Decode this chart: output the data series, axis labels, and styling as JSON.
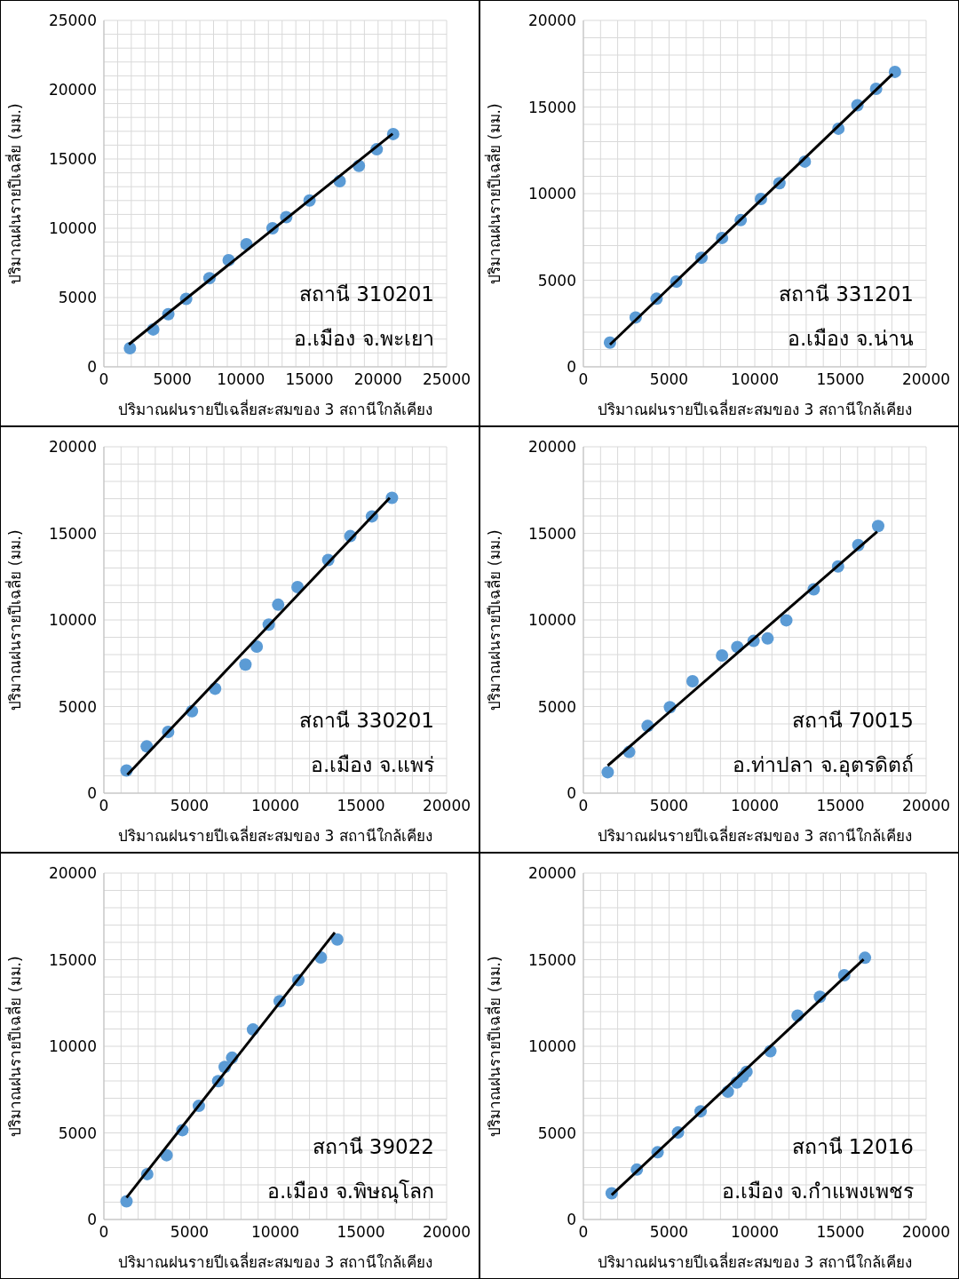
{
  "chart_data": [
    {
      "type": "scatter",
      "xlabel": "ปริมาณฝนรายปีเฉลี่ยสะสมของ 3 สถานีใกล้เคียง",
      "ylabel": "ปริมาณฝนรายปีเฉลี่ย (มม.)",
      "annotations": [
        "สถานี 310201",
        "อ.เมือง จ.พะเยา"
      ],
      "grid": true,
      "marker": "circle",
      "xlim": [
        0,
        25000
      ],
      "ylim": [
        0,
        25000
      ],
      "xticks": [
        0,
        {
          "value": 1000,
          "label": null
        },
        {
          "value": 2000,
          "label": null
        },
        {
          "value": 3000,
          "label": null
        },
        {
          "value": 4000,
          "label": null
        },
        5000,
        {
          "value": 6000,
          "label": null
        },
        {
          "value": 7000,
          "label": null
        },
        {
          "value": 8000,
          "label": null
        },
        {
          "value": 9000,
          "label": null
        },
        10000,
        {
          "value": 11000,
          "label": null
        },
        {
          "value": 12000,
          "label": null
        },
        {
          "value": 13000,
          "label": null
        },
        {
          "value": 14000,
          "label": null
        },
        15000,
        {
          "value": 16000,
          "label": null
        },
        {
          "value": 17000,
          "label": null
        },
        {
          "value": 18000,
          "label": null
        },
        {
          "value": 19000,
          "label": null
        },
        20000,
        {
          "value": 21000,
          "label": null
        },
        {
          "value": 22000,
          "label": null
        },
        {
          "value": 23000,
          "label": null
        },
        {
          "value": 24000,
          "label": null
        },
        25000
      ],
      "yticks": [
        0,
        {
          "value": 1000,
          "label": null
        },
        {
          "value": 2000,
          "label": null
        },
        {
          "value": 3000,
          "label": null
        },
        {
          "value": 4000,
          "label": null
        },
        5000,
        {
          "value": 6000,
          "label": null
        },
        {
          "value": 7000,
          "label": null
        },
        {
          "value": 8000,
          "label": null
        },
        {
          "value": 9000,
          "label": null
        },
        10000,
        {
          "value": 11000,
          "label": null
        },
        {
          "value": 12000,
          "label": null
        },
        {
          "value": 13000,
          "label": null
        },
        {
          "value": 14000,
          "label": null
        },
        15000,
        {
          "value": 16000,
          "label": null
        },
        {
          "value": 17000,
          "label": null
        },
        {
          "value": 18000,
          "label": null
        },
        {
          "value": 19000,
          "label": null
        },
        20000,
        {
          "value": 21000,
          "label": null
        },
        {
          "value": 22000,
          "label": null
        },
        {
          "value": 23000,
          "label": null
        },
        {
          "value": 24000,
          "label": null
        },
        25000
      ],
      "series": [
        {
          "color": "#5b9bd5",
          "x": [
            1900,
            3600,
            4700,
            6000,
            7700,
            9100,
            10400,
            12300,
            13300,
            15000,
            17200,
            18600,
            19900,
            21100
          ],
          "values": [
            1350,
            2700,
            3800,
            4900,
            6400,
            7700,
            8850,
            10000,
            10800,
            12000,
            13400,
            14500,
            15700,
            16800
          ]
        },
        {
          "type": "line",
          "marker": "none",
          "color": "#000000",
          "x": [
            1820,
            21060
          ],
          "values": [
            1620,
            16820
          ]
        }
      ]
    },
    {
      "type": "scatter",
      "xlabel": "ปริมาณฝนรายปีเฉลี่ยสะสมของ 3 สถานีใกล้เคียง",
      "ylabel": "ปริมาณฝนรายปีเฉลี่ย (มม.)",
      "annotations": [
        "สถานี 331201",
        "อ.เมือง จ.น่าน"
      ],
      "grid": true,
      "marker": "circle",
      "xlim": [
        0,
        20000
      ],
      "ylim": [
        0,
        20000
      ],
      "xticks": [
        0,
        {
          "value": 1000,
          "label": null
        },
        {
          "value": 2000,
          "label": null
        },
        {
          "value": 3000,
          "label": null
        },
        {
          "value": 4000,
          "label": null
        },
        5000,
        {
          "value": 6000,
          "label": null
        },
        {
          "value": 7000,
          "label": null
        },
        {
          "value": 8000,
          "label": null
        },
        {
          "value": 9000,
          "label": null
        },
        10000,
        {
          "value": 11000,
          "label": null
        },
        {
          "value": 12000,
          "label": null
        },
        {
          "value": 13000,
          "label": null
        },
        {
          "value": 14000,
          "label": null
        },
        15000,
        {
          "value": 16000,
          "label": null
        },
        {
          "value": 17000,
          "label": null
        },
        {
          "value": 18000,
          "label": null
        },
        {
          "value": 19000,
          "label": null
        },
        20000
      ],
      "yticks": [
        0,
        {
          "value": 1000,
          "label": null
        },
        {
          "value": 2000,
          "label": null
        },
        {
          "value": 3000,
          "label": null
        },
        {
          "value": 4000,
          "label": null
        },
        5000,
        {
          "value": 6000,
          "label": null
        },
        {
          "value": 7000,
          "label": null
        },
        {
          "value": 8000,
          "label": null
        },
        {
          "value": 9000,
          "label": null
        },
        10000,
        {
          "value": 11000,
          "label": null
        },
        {
          "value": 12000,
          "label": null
        },
        {
          "value": 13000,
          "label": null
        },
        {
          "value": 14000,
          "label": null
        },
        15000,
        {
          "value": 16000,
          "label": null
        },
        {
          "value": 17000,
          "label": null
        },
        {
          "value": 18000,
          "label": null
        },
        {
          "value": 19000,
          "label": null
        },
        20000
      ],
      "series": [
        {
          "color": "#5b9bd5",
          "x": [
            1550,
            3050,
            4270,
            5420,
            6890,
            8090,
            9180,
            10360,
            11440,
            12920,
            14880,
            15990,
            17080,
            18180
          ],
          "values": [
            1400,
            2850,
            3930,
            4920,
            6300,
            7440,
            8470,
            9690,
            10600,
            11850,
            13750,
            15100,
            16050,
            17030
          ]
        },
        {
          "type": "line",
          "marker": "none",
          "color": "#000000",
          "x": [
            1550,
            18040
          ],
          "values": [
            1280,
            16900
          ]
        }
      ]
    },
    {
      "type": "scatter",
      "xlabel": "ปริมาณฝนรายปีเฉลี่ยสะสมของ 3 สถานีใกล้เคียง",
      "ylabel": "ปริมาณฝนรายปีเฉลี่ย (มม.)",
      "annotations": [
        "สถานี 330201",
        "อ.เมือง จ.แพร่"
      ],
      "grid": true,
      "marker": "circle",
      "xlim": [
        0,
        20000
      ],
      "ylim": [
        0,
        20000
      ],
      "xticks": [
        0,
        {
          "value": 1000,
          "label": null
        },
        {
          "value": 2000,
          "label": null
        },
        {
          "value": 3000,
          "label": null
        },
        {
          "value": 4000,
          "label": null
        },
        5000,
        {
          "value": 6000,
          "label": null
        },
        {
          "value": 7000,
          "label": null
        },
        {
          "value": 8000,
          "label": null
        },
        {
          "value": 9000,
          "label": null
        },
        10000,
        {
          "value": 11000,
          "label": null
        },
        {
          "value": 12000,
          "label": null
        },
        {
          "value": 13000,
          "label": null
        },
        {
          "value": 14000,
          "label": null
        },
        15000,
        {
          "value": 16000,
          "label": null
        },
        {
          "value": 17000,
          "label": null
        },
        {
          "value": 18000,
          "label": null
        },
        {
          "value": 19000,
          "label": null
        },
        20000
      ],
      "yticks": [
        0,
        {
          "value": 1000,
          "label": null
        },
        {
          "value": 2000,
          "label": null
        },
        {
          "value": 3000,
          "label": null
        },
        {
          "value": 4000,
          "label": null
        },
        5000,
        {
          "value": 6000,
          "label": null
        },
        {
          "value": 7000,
          "label": null
        },
        {
          "value": 8000,
          "label": null
        },
        {
          "value": 9000,
          "label": null
        },
        10000,
        {
          "value": 11000,
          "label": null
        },
        {
          "value": 12000,
          "label": null
        },
        {
          "value": 13000,
          "label": null
        },
        {
          "value": 14000,
          "label": null
        },
        15000,
        {
          "value": 16000,
          "label": null
        },
        {
          "value": 17000,
          "label": null
        },
        {
          "value": 18000,
          "label": null
        },
        {
          "value": 19000,
          "label": null
        },
        20000
      ],
      "series": [
        {
          "color": "#5b9bd5",
          "x": [
            1320,
            2500,
            3750,
            5140,
            6490,
            8260,
            8920,
            9620,
            10170,
            11300,
            13090,
            14380,
            15640,
            16810
          ],
          "values": [
            1310,
            2700,
            3540,
            4730,
            6030,
            7420,
            8460,
            9730,
            10880,
            11900,
            13460,
            14840,
            15980,
            17050
          ]
        },
        {
          "type": "line",
          "marker": "none",
          "color": "#000000",
          "x": [
            1370,
            16680
          ],
          "values": [
            1060,
            17050
          ]
        }
      ]
    },
    {
      "type": "scatter",
      "xlabel": "ปริมาณฝนรายปีเฉลี่ยสะสมของ 3 สถานีใกล้เคียง",
      "ylabel": "ปริมาณฝนรายปีเฉลี่ย (มม.)",
      "annotations": [
        "สถานี 70015",
        "อ.ท่าปลา จ.อุตรดิตถ์"
      ],
      "grid": true,
      "marker": "circle",
      "xlim": [
        0,
        20000
      ],
      "ylim": [
        0,
        20000
      ],
      "xticks": [
        0,
        {
          "value": 1000,
          "label": null
        },
        {
          "value": 2000,
          "label": null
        },
        {
          "value": 3000,
          "label": null
        },
        {
          "value": 4000,
          "label": null
        },
        5000,
        {
          "value": 6000,
          "label": null
        },
        {
          "value": 7000,
          "label": null
        },
        {
          "value": 8000,
          "label": null
        },
        {
          "value": 9000,
          "label": null
        },
        10000,
        {
          "value": 11000,
          "label": null
        },
        {
          "value": 12000,
          "label": null
        },
        {
          "value": 13000,
          "label": null
        },
        {
          "value": 14000,
          "label": null
        },
        15000,
        {
          "value": 16000,
          "label": null
        },
        {
          "value": 17000,
          "label": null
        },
        {
          "value": 18000,
          "label": null
        },
        {
          "value": 19000,
          "label": null
        },
        20000
      ],
      "yticks": [
        0,
        {
          "value": 1000,
          "label": null
        },
        {
          "value": 2000,
          "label": null
        },
        {
          "value": 3000,
          "label": null
        },
        {
          "value": 4000,
          "label": null
        },
        5000,
        {
          "value": 6000,
          "label": null
        },
        {
          "value": 7000,
          "label": null
        },
        {
          "value": 8000,
          "label": null
        },
        {
          "value": 9000,
          "label": null
        },
        10000,
        {
          "value": 11000,
          "label": null
        },
        {
          "value": 12000,
          "label": null
        },
        {
          "value": 13000,
          "label": null
        },
        {
          "value": 14000,
          "label": null
        },
        15000,
        {
          "value": 16000,
          "label": null
        },
        {
          "value": 17000,
          "label": null
        },
        {
          "value": 18000,
          "label": null
        },
        {
          "value": 19000,
          "label": null
        },
        20000
      ],
      "series": [
        {
          "color": "#5b9bd5",
          "x": [
            1420,
            2670,
            3750,
            5050,
            6370,
            8090,
            8980,
            9930,
            10750,
            11840,
            13440,
            14860,
            16040,
            17200
          ],
          "values": [
            1210,
            2380,
            3880,
            4960,
            6460,
            7950,
            8440,
            8790,
            8930,
            9980,
            11770,
            13090,
            14320,
            15420
          ]
        },
        {
          "type": "line",
          "marker": "none",
          "color": "#000000",
          "x": [
            1420,
            17140
          ],
          "values": [
            1590,
            15100
          ]
        }
      ]
    },
    {
      "type": "scatter",
      "xlabel": "ปริมาณฝนรายปีเฉลี่ยสะสมของ 3 สถานีใกล้เคียง",
      "ylabel": "ปริมาณฝนรายปีเฉลี่ย (มม.)",
      "annotations": [
        "สถานี 39022",
        "อ.เมือง จ.พิษณุโลก"
      ],
      "grid": true,
      "marker": "circle",
      "xlim": [
        0,
        20000
      ],
      "ylim": [
        0,
        20000
      ],
      "xticks": [
        0,
        {
          "value": 1000,
          "label": null
        },
        {
          "value": 2000,
          "label": null
        },
        {
          "value": 3000,
          "label": null
        },
        {
          "value": 4000,
          "label": null
        },
        5000,
        {
          "value": 6000,
          "label": null
        },
        {
          "value": 7000,
          "label": null
        },
        {
          "value": 8000,
          "label": null
        },
        {
          "value": 9000,
          "label": null
        },
        10000,
        {
          "value": 11000,
          "label": null
        },
        {
          "value": 12000,
          "label": null
        },
        {
          "value": 13000,
          "label": null
        },
        {
          "value": 14000,
          "label": null
        },
        15000,
        {
          "value": 16000,
          "label": null
        },
        {
          "value": 17000,
          "label": null
        },
        {
          "value": 18000,
          "label": null
        },
        {
          "value": 19000,
          "label": null
        },
        20000
      ],
      "yticks": [
        0,
        {
          "value": 1000,
          "label": null
        },
        {
          "value": 2000,
          "label": null
        },
        {
          "value": 3000,
          "label": null
        },
        {
          "value": 4000,
          "label": null
        },
        5000,
        {
          "value": 6000,
          "label": null
        },
        {
          "value": 7000,
          "label": null
        },
        {
          "value": 8000,
          "label": null
        },
        {
          "value": 9000,
          "label": null
        },
        10000,
        {
          "value": 11000,
          "label": null
        },
        {
          "value": 12000,
          "label": null
        },
        {
          "value": 13000,
          "label": null
        },
        {
          "value": 14000,
          "label": null
        },
        15000,
        {
          "value": 16000,
          "label": null
        },
        {
          "value": 17000,
          "label": null
        },
        {
          "value": 18000,
          "label": null
        },
        {
          "value": 19000,
          "label": null
        },
        20000
      ],
      "series": [
        {
          "color": "#5b9bd5",
          "x": [
            1320,
            2530,
            3660,
            4580,
            5540,
            6670,
            7050,
            7480,
            8700,
            10260,
            11350,
            12660,
            13620
          ],
          "values": [
            1050,
            2620,
            3710,
            5160,
            6560,
            7990,
            8810,
            9340,
            10970,
            12600,
            13820,
            15130,
            16170
          ]
        },
        {
          "type": "line",
          "marker": "none",
          "color": "#000000",
          "x": [
            1320,
            13470
          ],
          "values": [
            1260,
            16570
          ]
        }
      ]
    },
    {
      "type": "scatter",
      "xlabel": "ปริมาณฝนรายปีเฉลี่ยสะสมของ 3 สถานีใกล้เคียง",
      "ylabel": "ปริมาณฝนรายปีเฉลี่ย (มม.)",
      "annotations": [
        "สถานี 12016",
        "อ.เมือง จ.กำแพงเพชร"
      ],
      "grid": true,
      "marker": "circle",
      "xlim": [
        0,
        20000
      ],
      "ylim": [
        0,
        20000
      ],
      "xticks": [
        0,
        {
          "value": 1000,
          "label": null
        },
        {
          "value": 2000,
          "label": null
        },
        {
          "value": 3000,
          "label": null
        },
        {
          "value": 4000,
          "label": null
        },
        5000,
        {
          "value": 6000,
          "label": null
        },
        {
          "value": 7000,
          "label": null
        },
        {
          "value": 8000,
          "label": null
        },
        {
          "value": 9000,
          "label": null
        },
        10000,
        {
          "value": 11000,
          "label": null
        },
        {
          "value": 12000,
          "label": null
        },
        {
          "value": 13000,
          "label": null
        },
        {
          "value": 14000,
          "label": null
        },
        15000,
        {
          "value": 16000,
          "label": null
        },
        {
          "value": 17000,
          "label": null
        },
        {
          "value": 18000,
          "label": null
        },
        {
          "value": 19000,
          "label": null
        },
        20000
      ],
      "yticks": [
        0,
        {
          "value": 1000,
          "label": null
        },
        {
          "value": 2000,
          "label": null
        },
        {
          "value": 3000,
          "label": null
        },
        {
          "value": 4000,
          "label": null
        },
        5000,
        {
          "value": 6000,
          "label": null
        },
        {
          "value": 7000,
          "label": null
        },
        {
          "value": 8000,
          "label": null
        },
        {
          "value": 9000,
          "label": null
        },
        10000,
        {
          "value": 11000,
          "label": null
        },
        {
          "value": 12000,
          "label": null
        },
        {
          "value": 13000,
          "label": null
        },
        {
          "value": 14000,
          "label": null
        },
        15000,
        {
          "value": 16000,
          "label": null
        },
        {
          "value": 17000,
          "label": null
        },
        {
          "value": 18000,
          "label": null
        },
        {
          "value": 19000,
          "label": null
        },
        20000
      ],
      "series": [
        {
          "color": "#5b9bd5",
          "x": [
            1650,
            3120,
            4330,
            5520,
            6840,
            8430,
            8950,
            9300,
            9520,
            10910,
            12500,
            13800,
            15220,
            16430
          ],
          "values": [
            1510,
            2880,
            3880,
            5020,
            6250,
            7380,
            7910,
            8260,
            8530,
            9720,
            11770,
            12860,
            14100,
            15110
          ]
        },
        {
          "type": "line",
          "marker": "none",
          "color": "#000000",
          "x": [
            1650,
            16350
          ],
          "values": [
            1420,
            15020
          ]
        }
      ]
    }
  ]
}
